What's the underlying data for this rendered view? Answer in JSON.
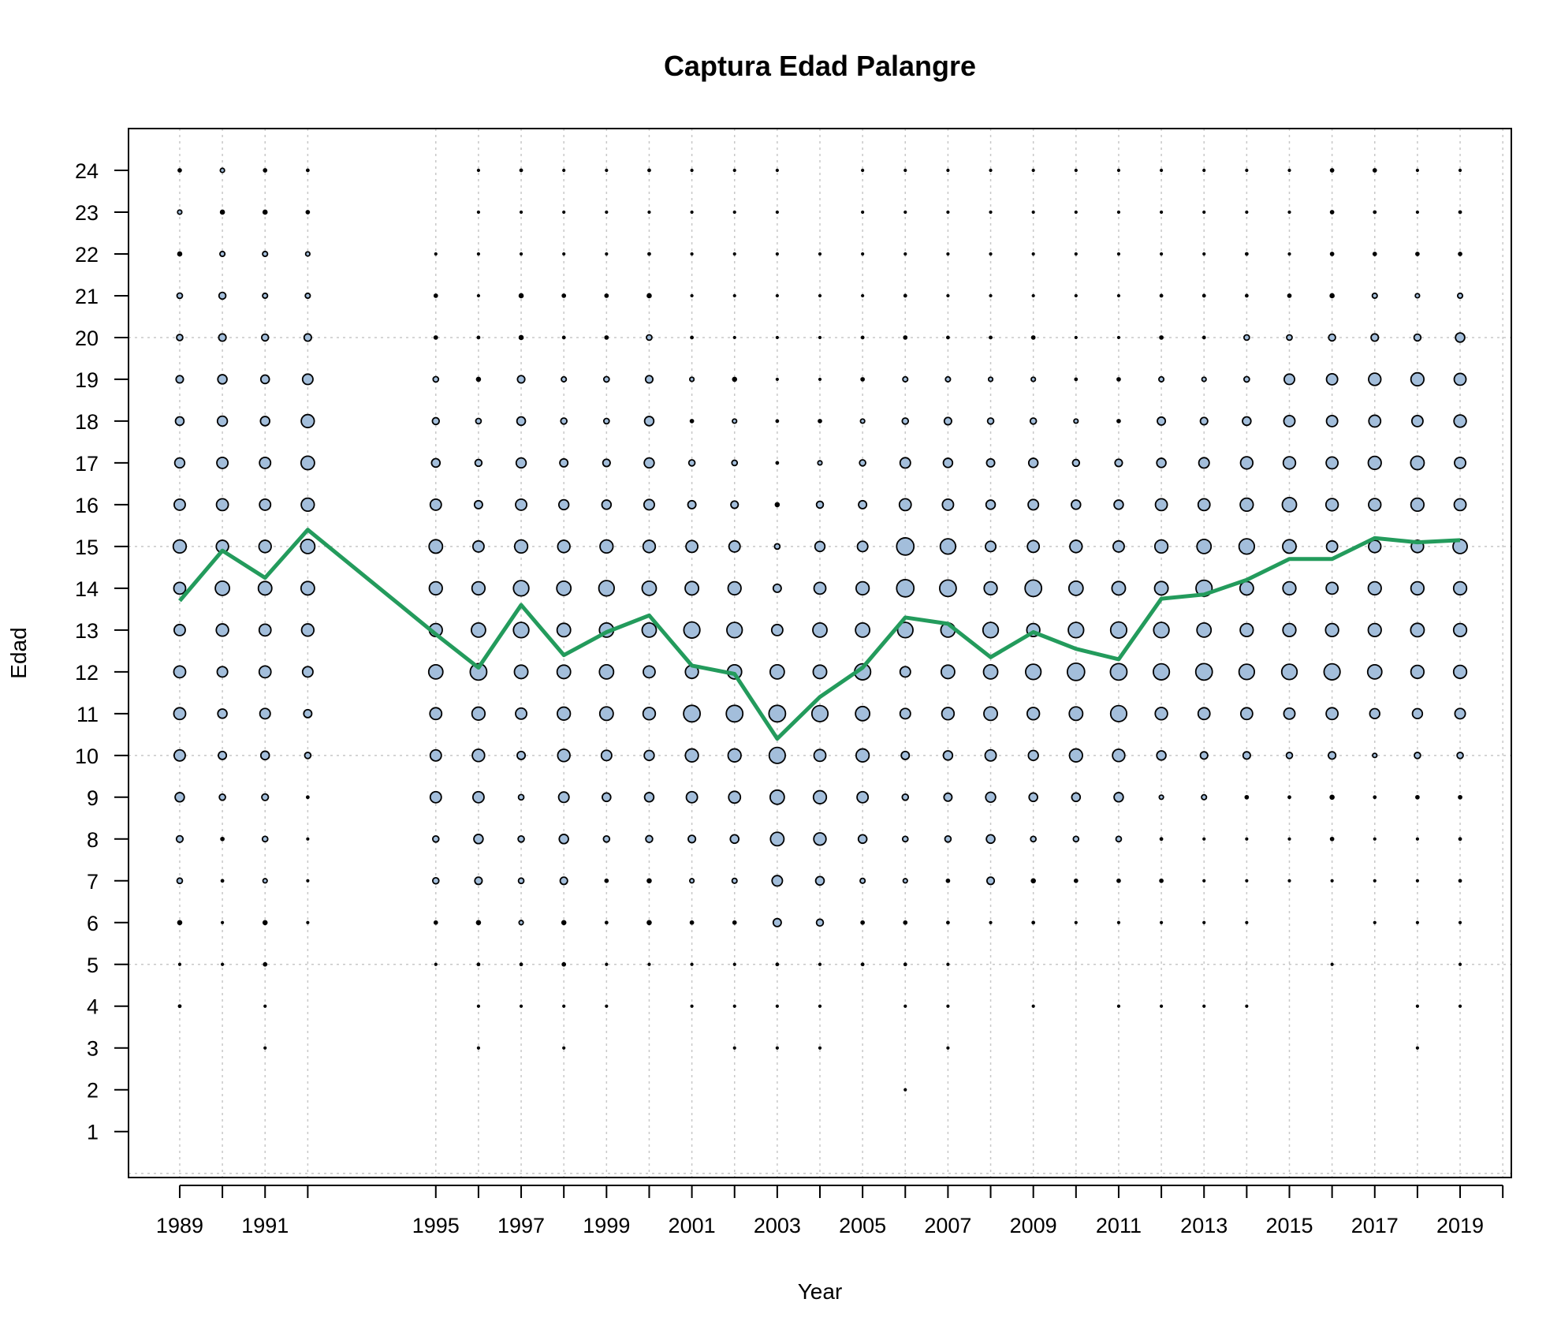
{
  "chart_data": {
    "type": "scatter",
    "subtype": "bubble",
    "title": "Captura Edad Palangre",
    "xlabel": "Year",
    "ylabel": "Edad",
    "xlim": [
      1987.8,
      2020.2
    ],
    "ylim": [
      -0.1,
      25
    ],
    "x_ticks": [
      1989,
      1991,
      1995,
      1997,
      1999,
      2001,
      2003,
      2005,
      2007,
      2009,
      2011,
      2013,
      2015,
      2017,
      2019
    ],
    "y_ticks": [
      1,
      2,
      3,
      4,
      5,
      6,
      7,
      8,
      9,
      10,
      11,
      12,
      13,
      14,
      15,
      16,
      17,
      18,
      19,
      20,
      21,
      22,
      23,
      24
    ],
    "grid": true,
    "grid_x": [
      1989,
      1990,
      1991,
      1992,
      1995,
      1996,
      1997,
      1998,
      1999,
      2000,
      2001,
      2002,
      2003,
      2004,
      2005,
      2006,
      2007,
      2008,
      2009,
      2010,
      2011,
      2012,
      2013,
      2014,
      2015,
      2016,
      2017,
      2018,
      2019,
      2020
    ],
    "grid_y": [
      0,
      5,
      10,
      15,
      20,
      25
    ],
    "bubble_color": "#a3bedb",
    "line_color": "#239b5c",
    "size_scale_max": 1.0,
    "years": [
      1989,
      1990,
      1991,
      1992,
      1995,
      1996,
      1997,
      1998,
      1999,
      2000,
      2001,
      2002,
      2003,
      2004,
      2005,
      2006,
      2007,
      2008,
      2009,
      2010,
      2011,
      2012,
      2013,
      2014,
      2015,
      2016,
      2017,
      2018,
      2019
    ],
    "ages": [
      1,
      2,
      3,
      4,
      5,
      6,
      7,
      8,
      9,
      10,
      11,
      12,
      13,
      14,
      15,
      16,
      17,
      18,
      19,
      20,
      21,
      22,
      23,
      24
    ],
    "relative_catch_at_age": [
      [
        0,
        0,
        0,
        0.1,
        0.08,
        0.16,
        0.23,
        0.28,
        0.39,
        0.47,
        0.5,
        0.5,
        0.47,
        0.5,
        0.55,
        0.47,
        0.42,
        0.36,
        0.31,
        0.26,
        0.23,
        0.16,
        0.18,
        0.13
      ],
      [
        0,
        0,
        0,
        0,
        0.05,
        0.07,
        0.1,
        0.13,
        0.26,
        0.34,
        0.39,
        0.44,
        0.52,
        0.6,
        0.52,
        0.5,
        0.47,
        0.42,
        0.39,
        0.31,
        0.29,
        0.21,
        0.16,
        0.18
      ],
      [
        0,
        0,
        0.03,
        0.08,
        0.13,
        0.16,
        0.18,
        0.23,
        0.28,
        0.36,
        0.44,
        0.5,
        0.5,
        0.57,
        0.52,
        0.47,
        0.47,
        0.39,
        0.36,
        0.29,
        0.21,
        0.21,
        0.16,
        0.13
      ],
      [
        0,
        0,
        0,
        0,
        0,
        0.03,
        0.03,
        0.03,
        0.1,
        0.26,
        0.34,
        0.44,
        0.52,
        0.57,
        0.6,
        0.55,
        0.57,
        0.55,
        0.44,
        0.31,
        0.21,
        0.18,
        0.13,
        0.1
      ],
      [
        0,
        0,
        0,
        0,
        0.05,
        0.13,
        0.26,
        0.26,
        0.47,
        0.47,
        0.5,
        0.6,
        0.55,
        0.55,
        0.57,
        0.47,
        0.36,
        0.29,
        0.23,
        0.13,
        0.13,
        0.03,
        0,
        0
      ],
      [
        0,
        0,
        0.03,
        0.05,
        0.1,
        0.16,
        0.31,
        0.39,
        0.47,
        0.52,
        0.55,
        0.7,
        0.6,
        0.55,
        0.47,
        0.34,
        0.29,
        0.23,
        0.16,
        0.1,
        0.08,
        0.05,
        0.03,
        0.03
      ],
      [
        0,
        0,
        0,
        0.08,
        0.1,
        0.18,
        0.23,
        0.26,
        0.23,
        0.34,
        0.47,
        0.57,
        0.65,
        0.65,
        0.55,
        0.47,
        0.42,
        0.36,
        0.31,
        0.16,
        0.16,
        0.05,
        0.08,
        0.1
      ],
      [
        0,
        0,
        0.03,
        0.08,
        0.13,
        0.16,
        0.31,
        0.39,
        0.44,
        0.52,
        0.55,
        0.57,
        0.57,
        0.6,
        0.52,
        0.42,
        0.34,
        0.26,
        0.21,
        0.1,
        0.13,
        0.08,
        0.05,
        0.05
      ],
      [
        0,
        0,
        0,
        0.03,
        0.05,
        0.1,
        0.13,
        0.26,
        0.36,
        0.44,
        0.57,
        0.6,
        0.6,
        0.65,
        0.55,
        0.39,
        0.31,
        0.23,
        0.23,
        0.13,
        0.13,
        0.08,
        0.05,
        0.08
      ],
      [
        0,
        0,
        0,
        0,
        0.05,
        0.16,
        0.16,
        0.29,
        0.39,
        0.42,
        0.52,
        0.5,
        0.6,
        0.6,
        0.52,
        0.44,
        0.42,
        0.39,
        0.31,
        0.23,
        0.16,
        0.1,
        0.08,
        0.1
      ],
      [
        0,
        0,
        0,
        0.03,
        0.05,
        0.13,
        0.18,
        0.31,
        0.47,
        0.55,
        0.7,
        0.55,
        0.68,
        0.57,
        0.5,
        0.34,
        0.26,
        0.13,
        0.18,
        0.1,
        0.05,
        0.03,
        0.03,
        0.03
      ],
      [
        0,
        0,
        0.03,
        0.03,
        0.05,
        0.13,
        0.21,
        0.36,
        0.5,
        0.55,
        0.7,
        0.6,
        0.65,
        0.55,
        0.47,
        0.31,
        0.23,
        0.18,
        0.16,
        0.05,
        0.05,
        0.03,
        0.03,
        0.03
      ],
      [
        0,
        0,
        0.03,
        0.03,
        0.1,
        0.34,
        0.44,
        0.57,
        0.6,
        0.68,
        0.7,
        0.6,
        0.47,
        0.34,
        0.23,
        0.16,
        0.1,
        0.1,
        0.05,
        0.03,
        0.03,
        0.03,
        0.03,
        0.03
      ],
      [
        0,
        0,
        0.03,
        0.03,
        0.08,
        0.29,
        0.36,
        0.52,
        0.55,
        0.5,
        0.68,
        0.57,
        0.6,
        0.5,
        0.42,
        0.29,
        0.18,
        0.13,
        0.08,
        0.05,
        0.03,
        0.03,
        0,
        0
      ],
      [
        0,
        0,
        0,
        0,
        0.1,
        0.13,
        0.21,
        0.36,
        0.47,
        0.55,
        0.6,
        0.68,
        0.6,
        0.55,
        0.44,
        0.34,
        0.26,
        0.18,
        0.13,
        0.1,
        0.08,
        0.05,
        0.05,
        0.08
      ],
      [
        0,
        0.03,
        0,
        0.05,
        0.1,
        0.13,
        0.18,
        0.23,
        0.26,
        0.34,
        0.44,
        0.44,
        0.65,
        0.73,
        0.73,
        0.5,
        0.44,
        0.26,
        0.21,
        0.13,
        0.1,
        0.05,
        0.05,
        0.03
      ],
      [
        0,
        0,
        0.03,
        0.03,
        0.03,
        0.1,
        0.13,
        0.26,
        0.34,
        0.39,
        0.52,
        0.57,
        0.6,
        0.7,
        0.65,
        0.47,
        0.39,
        0.31,
        0.21,
        0.1,
        0.08,
        0.05,
        0.05,
        0.03
      ],
      [
        0,
        0,
        0,
        0,
        0,
        0.08,
        0.31,
        0.36,
        0.42,
        0.47,
        0.57,
        0.6,
        0.65,
        0.55,
        0.44,
        0.39,
        0.34,
        0.26,
        0.18,
        0.1,
        0.08,
        0.05,
        0.03,
        0.03
      ],
      [
        0,
        0,
        0,
        0.03,
        0,
        0.1,
        0.16,
        0.23,
        0.36,
        0.42,
        0.52,
        0.65,
        0.55,
        0.7,
        0.5,
        0.44,
        0.39,
        0.26,
        0.18,
        0.13,
        0.08,
        0.03,
        0.03,
        0.03
      ],
      [
        0,
        0,
        0,
        0,
        0,
        0.08,
        0.13,
        0.23,
        0.36,
        0.55,
        0.57,
        0.73,
        0.65,
        0.6,
        0.52,
        0.39,
        0.29,
        0.18,
        0.1,
        0.08,
        0.05,
        0.05,
        0.03,
        0.03
      ],
      [
        0,
        0,
        0,
        0.03,
        0,
        0.08,
        0.13,
        0.23,
        0.39,
        0.52,
        0.68,
        0.7,
        0.68,
        0.57,
        0.47,
        0.39,
        0.31,
        0.13,
        0.13,
        0.08,
        0.05,
        0.03,
        0.03,
        0.03
      ],
      [
        0,
        0,
        0,
        0.03,
        0,
        0.05,
        0.13,
        0.1,
        0.18,
        0.39,
        0.52,
        0.68,
        0.65,
        0.57,
        0.55,
        0.5,
        0.39,
        0.34,
        0.21,
        0.13,
        0.1,
        0.08,
        0.05,
        0.05
      ],
      [
        0,
        0,
        0,
        0.03,
        0,
        0.03,
        0.05,
        0.08,
        0.21,
        0.31,
        0.5,
        0.7,
        0.6,
        0.68,
        0.6,
        0.5,
        0.44,
        0.31,
        0.18,
        0.1,
        0.1,
        0.08,
        0.05,
        0.08
      ],
      [
        0,
        0,
        0,
        0.03,
        0,
        0.03,
        0.03,
        0.05,
        0.13,
        0.31,
        0.5,
        0.65,
        0.55,
        0.57,
        0.65,
        0.55,
        0.52,
        0.36,
        0.23,
        0.23,
        0.1,
        0.1,
        0.05,
        0.05
      ],
      [
        0,
        0,
        0,
        0,
        0,
        0,
        0.03,
        0.03,
        0.1,
        0.26,
        0.47,
        0.65,
        0.55,
        0.55,
        0.57,
        0.6,
        0.52,
        0.47,
        0.44,
        0.23,
        0.13,
        0.08,
        0.08,
        0.05
      ],
      [
        0,
        0,
        0,
        0,
        0.03,
        0,
        0.05,
        0.13,
        0.16,
        0.31,
        0.5,
        0.68,
        0.55,
        0.5,
        0.47,
        0.52,
        0.5,
        0.47,
        0.47,
        0.29,
        0.16,
        0.13,
        0.13,
        0.13
      ],
      [
        0,
        0,
        0,
        0,
        0,
        0.03,
        0.03,
        0.08,
        0.1,
        0.18,
        0.42,
        0.6,
        0.55,
        0.55,
        0.52,
        0.52,
        0.55,
        0.5,
        0.52,
        0.31,
        0.21,
        0.13,
        0.1,
        0.13
      ],
      [
        0,
        0,
        0.03,
        0.03,
        0,
        0.08,
        0.08,
        0.08,
        0.13,
        0.26,
        0.42,
        0.55,
        0.57,
        0.55,
        0.52,
        0.55,
        0.57,
        0.47,
        0.55,
        0.29,
        0.18,
        0.13,
        0.08,
        0.05
      ],
      [
        0,
        0,
        0,
        0.03,
        0.03,
        0.05,
        0.1,
        0.1,
        0.13,
        0.26,
        0.44,
        0.55,
        0.55,
        0.55,
        0.6,
        0.5,
        0.47,
        0.52,
        0.5,
        0.39,
        0.21,
        0.13,
        0.1,
        0.05
      ]
    ],
    "series": [
      {
        "x": [
          1989,
          1990,
          1991,
          1992,
          1995,
          1996,
          1997,
          1998,
          1999,
          2000,
          2001,
          2002,
          2003,
          2004,
          2005,
          2006,
          2007,
          2008,
          2009,
          2010,
          2011,
          2012,
          2013,
          2014,
          2015,
          2016,
          2017,
          2018,
          2019
        ],
        "y": [
          13.7,
          14.9,
          14.25,
          15.4,
          12.9,
          12.1,
          13.6,
          12.4,
          12.95,
          13.35,
          12.15,
          11.95,
          10.4,
          11.4,
          12.1,
          13.3,
          13.15,
          12.35,
          12.95,
          12.55,
          12.3,
          13.75,
          13.85,
          14.2,
          14.7,
          14.7,
          15.2,
          15.1,
          15.15
        ]
      }
    ]
  }
}
